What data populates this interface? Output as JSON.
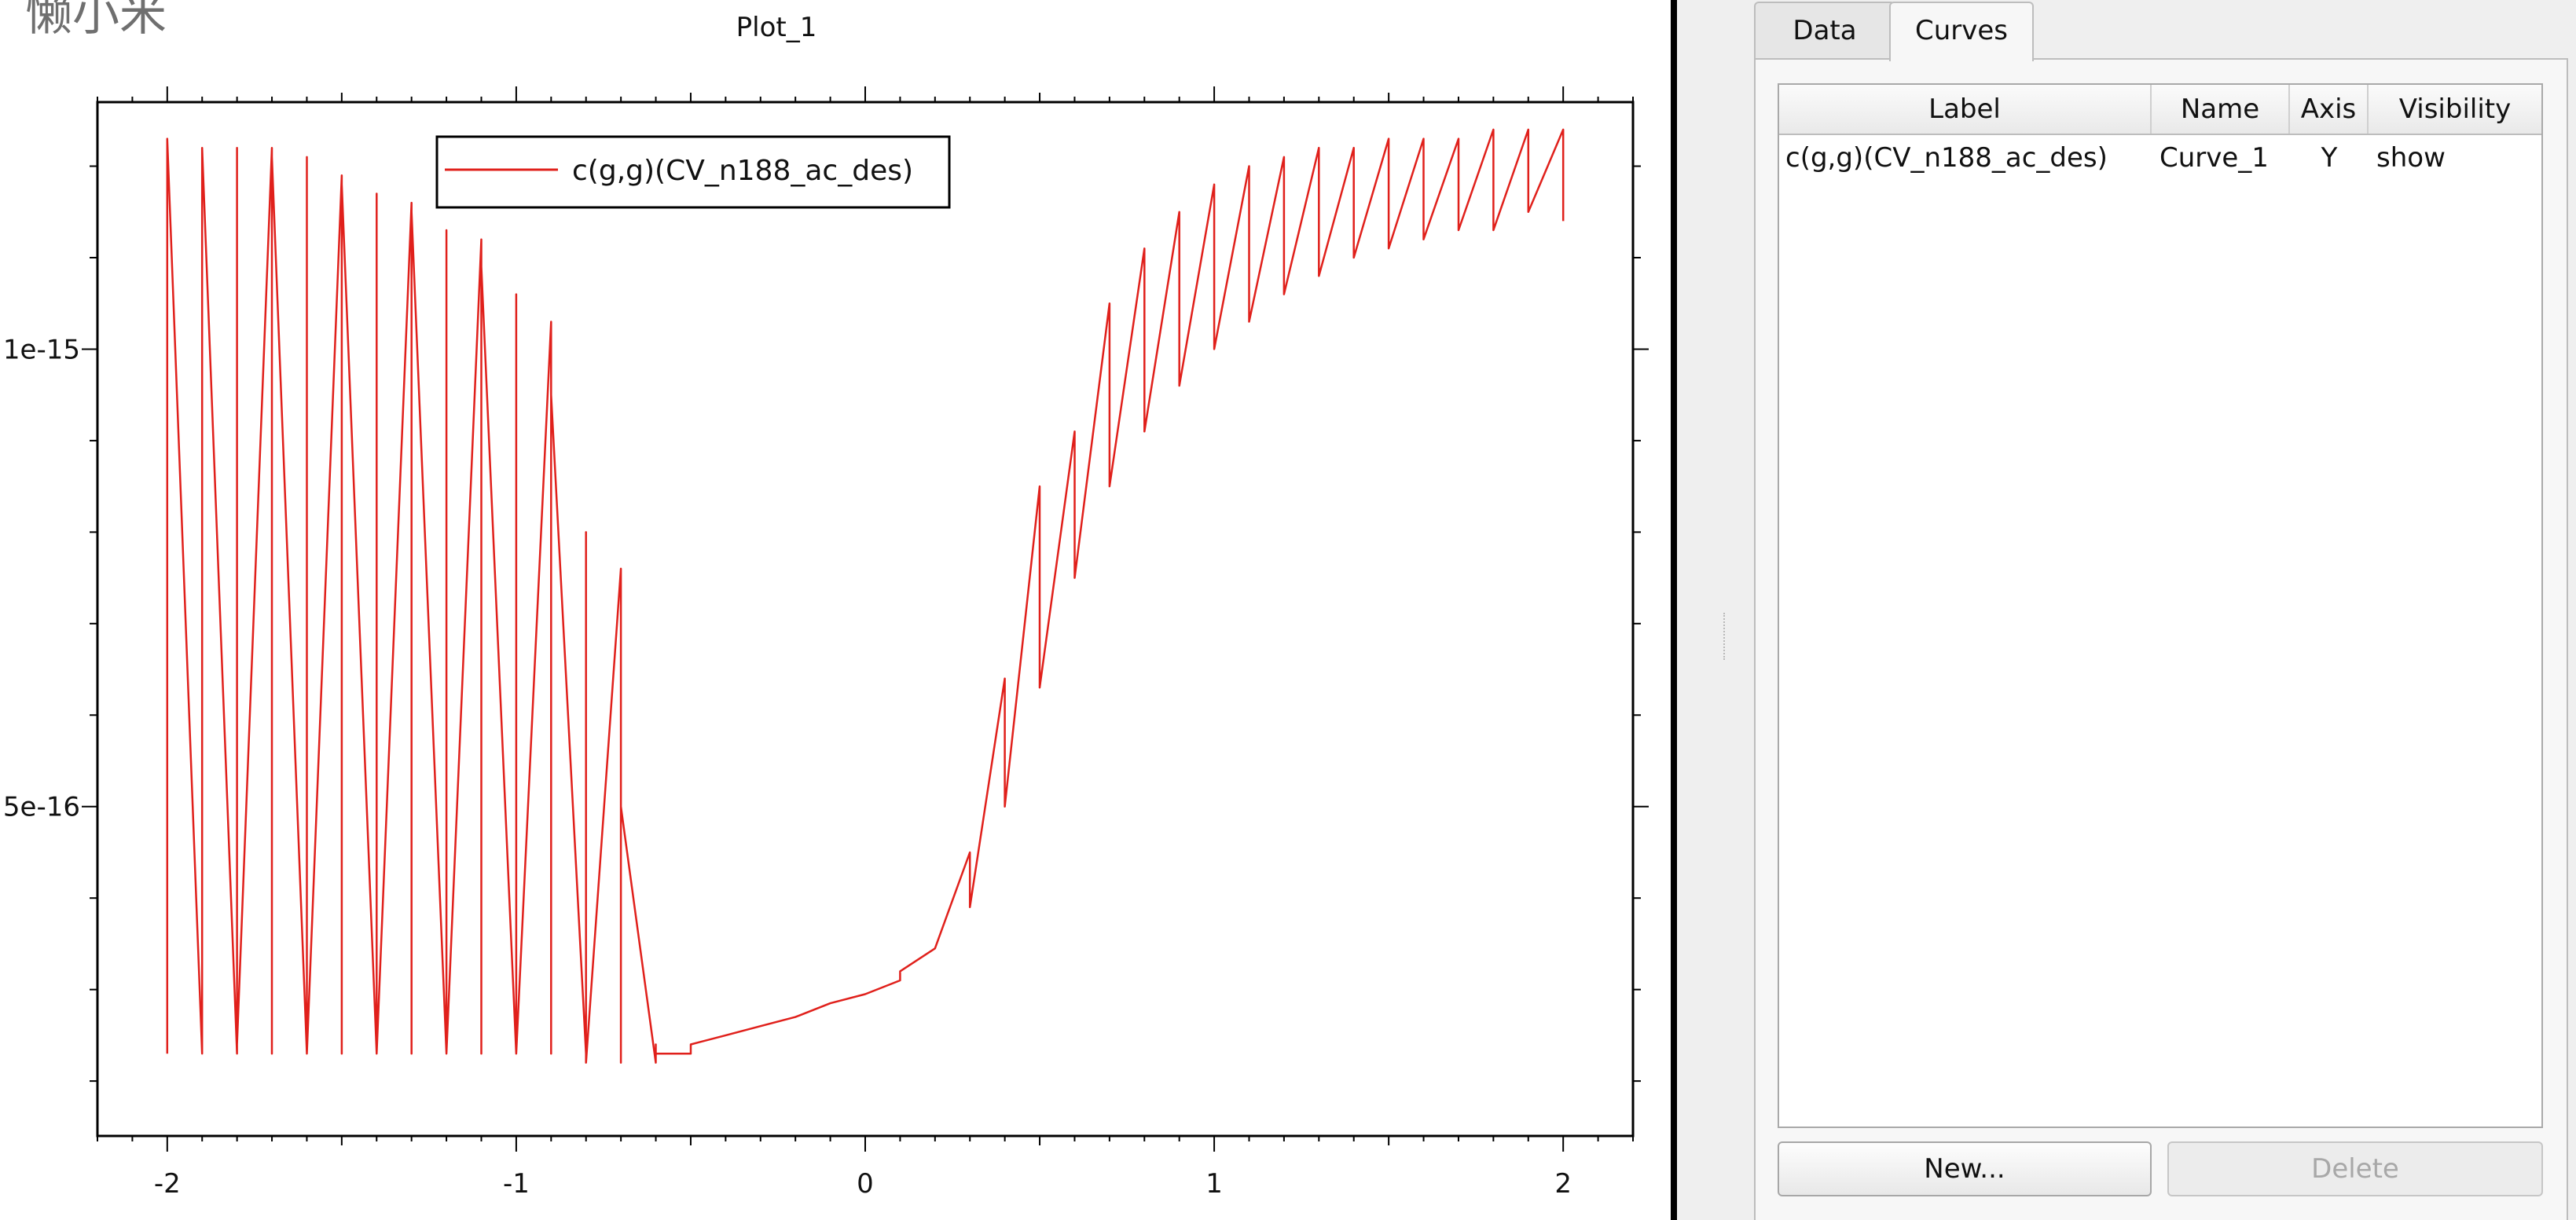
{
  "watermark": "懒小米",
  "plot": {
    "title": "Plot_1",
    "legend_label": "c(g,g)(CV_n188_ac_des)",
    "x_tick_labels": [
      "-2",
      "-1",
      "0",
      "1",
      "2"
    ],
    "y_tick_labels": [
      "1e-15",
      "5e-16"
    ],
    "line_color": "#e0201b"
  },
  "chart_data": {
    "type": "line",
    "title": "Plot_1",
    "xlim": [
      -2.2,
      2.2
    ],
    "ylim": [
      1.4e-16,
      1.27e-15
    ],
    "x_ticks": [
      -2,
      -1,
      0,
      1,
      2
    ],
    "y_ticks": [
      5e-16,
      1e-15
    ],
    "legend_position": "top-center",
    "grid": false,
    "series": [
      {
        "name": "c(g,g)(CV_n188_ac_des)",
        "color": "#e0201b",
        "x": [
          -2.0,
          -2.0,
          -1.9,
          -1.9,
          -1.9,
          -1.8,
          -1.8,
          -1.8,
          -1.7,
          -1.7,
          -1.7,
          -1.6,
          -1.6,
          -1.6,
          -1.5,
          -1.5,
          -1.5,
          -1.4,
          -1.4,
          -1.4,
          -1.3,
          -1.3,
          -1.3,
          -1.2,
          -1.2,
          -1.2,
          -1.1,
          -1.1,
          -1.1,
          -1.0,
          -1.0,
          -1.0,
          -0.9,
          -0.9,
          -0.9,
          -0.8,
          -0.8,
          -0.8,
          -0.7,
          -0.7,
          -0.7,
          -0.6,
          -0.6,
          -0.6,
          -0.5,
          -0.5,
          -0.4,
          -0.3,
          -0.2,
          -0.1,
          0.0,
          0.1,
          0.1,
          0.2,
          0.2,
          0.3,
          0.3,
          0.4,
          0.4,
          0.5,
          0.5,
          0.6,
          0.6,
          0.7,
          0.7,
          0.8,
          0.8,
          0.9,
          0.9,
          1.0,
          1.0,
          1.1,
          1.1,
          1.2,
          1.2,
          1.3,
          1.3,
          1.4,
          1.4,
          1.5,
          1.5,
          1.6,
          1.6,
          1.7,
          1.7,
          1.8,
          1.8,
          1.9,
          1.9,
          2.0,
          2.0
        ],
        "y": [
          2.3e-16,
          1.23e-15,
          2.3e-16,
          1.16e-15,
          1.22e-15,
          2.3e-16,
          1.22e-15,
          2.4e-16,
          1.22e-15,
          2.3e-16,
          1.21e-15,
          2.3e-16,
          1.21e-15,
          2.3e-16,
          1.19e-15,
          2.3e-16,
          1.18e-15,
          2.3e-16,
          1.17e-15,
          2.3e-16,
          1.16e-15,
          2.3e-16,
          1.15e-15,
          2.3e-16,
          1.13e-15,
          2.3e-16,
          1.12e-15,
          2.3e-16,
          1.09e-15,
          2.3e-16,
          1.06e-15,
          2.3e-16,
          1.03e-15,
          2.3e-16,
          9.5e-16,
          2.3e-16,
          8e-16,
          2.2e-16,
          7.6e-16,
          2.2e-16,
          5e-16,
          2.2e-16,
          2.4e-16,
          2.3e-16,
          2.3e-16,
          2.4e-16,
          2.5e-16,
          2.6e-16,
          2.7e-16,
          2.85e-16,
          2.95e-16,
          3.1e-16,
          3.2e-16,
          3.45e-16,
          3.45e-16,
          4.5e-16,
          3.9e-16,
          6.4e-16,
          5e-16,
          8.5e-16,
          6.3e-16,
          9.1e-16,
          7.5e-16,
          1.05e-15,
          8.5e-16,
          1.11e-15,
          9.1e-16,
          1.15e-15,
          9.6e-16,
          1.18e-15,
          1e-15,
          1.2e-15,
          1.03e-15,
          1.21e-15,
          1.06e-15,
          1.22e-15,
          1.08e-15,
          1.22e-15,
          1.1e-15,
          1.23e-15,
          1.11e-15,
          1.23e-15,
          1.12e-15,
          1.23e-15,
          1.13e-15,
          1.24e-15,
          1.13e-15,
          1.24e-15,
          1.15e-15,
          1.24e-15,
          1.14e-15
        ]
      }
    ]
  },
  "panel": {
    "tabs": [
      {
        "label": "Data"
      },
      {
        "label": "Curves"
      }
    ],
    "columns": [
      "Label",
      "Name",
      "Axis",
      "Visibility"
    ],
    "rows": [
      {
        "label": "c(g,g)(CV_n188_ac_des)",
        "name": "Curve_1",
        "axis": "Y",
        "visibility": "show"
      }
    ],
    "buttons": {
      "new": "New...",
      "delete": "Delete"
    }
  }
}
